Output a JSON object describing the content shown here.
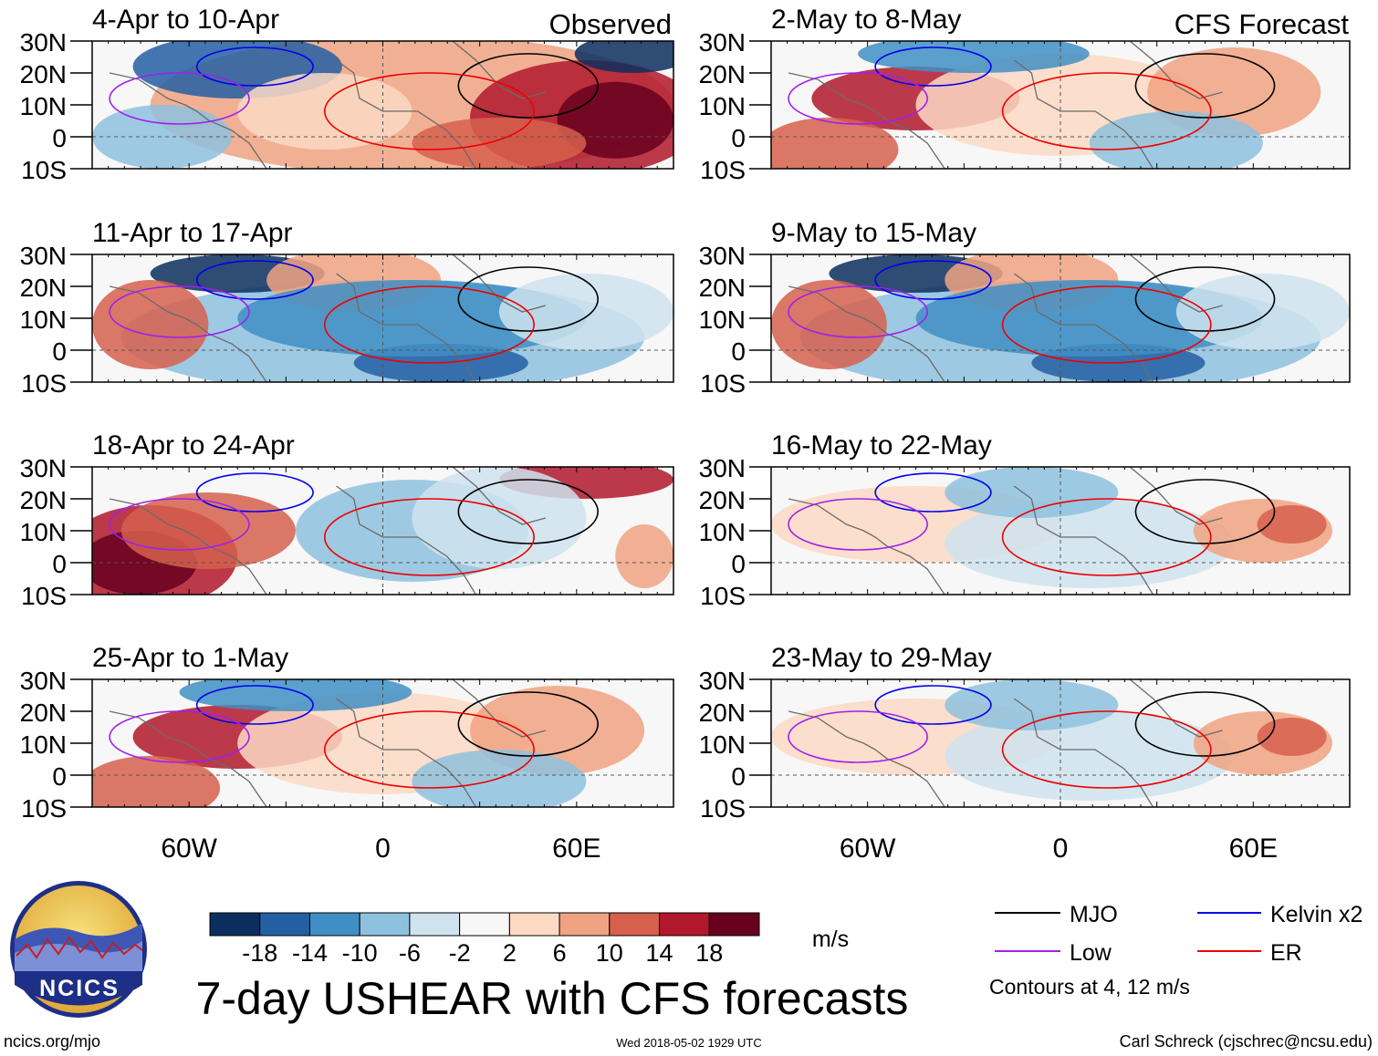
{
  "header": {
    "left_label": "Observed",
    "right_label": "CFS Forecast"
  },
  "chart_data": {
    "type": "heatmap",
    "variable": "USHEAR",
    "title": "7-day USHEAR with CFS forecasts",
    "units": "m/s",
    "lat_ticks": [
      "30N",
      "20N",
      "10N",
      "0",
      "10S"
    ],
    "lon_ticks": [
      "60W",
      "0",
      "60E"
    ],
    "lat_range": [
      -10,
      30
    ],
    "lon_range": [
      -90,
      90
    ],
    "panels": [
      {
        "column": "left",
        "period": "4-Apr to 10-Apr",
        "pattern": "warm"
      },
      {
        "column": "left",
        "period": "11-Apr to 17-Apr",
        "pattern": "cool"
      },
      {
        "column": "left",
        "period": "18-Apr to 24-Apr",
        "pattern": "mixed_west_warm"
      },
      {
        "column": "left",
        "period": "25-Apr to 1-May",
        "pattern": "mixed"
      },
      {
        "column": "right",
        "period": "2-May to 8-May",
        "pattern": "mixed"
      },
      {
        "column": "right",
        "period": "9-May to 15-May",
        "pattern": "cool"
      },
      {
        "column": "right",
        "period": "16-May to 22-May",
        "pattern": "weak"
      },
      {
        "column": "right",
        "period": "23-May to 29-May",
        "pattern": "weak"
      }
    ],
    "colorbar": {
      "colors": [
        "#0c2e5e",
        "#235fa3",
        "#3f8fc4",
        "#8ec1de",
        "#cfe3ef",
        "#f7f7f7",
        "#fcd9c3",
        "#f0a382",
        "#d6604d",
        "#b2182b",
        "#67001f"
      ],
      "tick_labels": [
        "-18",
        "-14",
        "-10",
        "-6",
        "-2",
        "2",
        "6",
        "10",
        "14",
        "18"
      ],
      "units": "m/s"
    },
    "legend": [
      {
        "name": "MJO",
        "color": "#000000"
      },
      {
        "name": "Kelvin x2",
        "color": "#0000ee"
      },
      {
        "name": "Low",
        "color": "#a020f0"
      },
      {
        "name": "ER",
        "color": "#ee0000"
      }
    ],
    "contour_note": "Contours at 4, 12 m/s"
  },
  "logo": {
    "text": "NCICS"
  },
  "footer": {
    "url": "ncics.org/mjo",
    "timestamp": "Wed 2018-05-02 1929 UTC",
    "author": "Carl Schreck (cjschrec@ncsu.edu)"
  }
}
